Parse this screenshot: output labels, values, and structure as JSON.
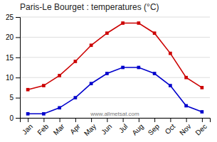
{
  "chart_data": {
    "type": "line",
    "title": "Paris-Le Bourget : temperatures (°C)",
    "categories": [
      "Jan",
      "Feb",
      "Mar",
      "Apr",
      "May",
      "Jun",
      "Jul",
      "Aug",
      "Sep",
      "Oct",
      "Nov",
      "Dec"
    ],
    "series": [
      {
        "color": "#cc0000",
        "marker": "square",
        "values": [
          7,
          8,
          10.5,
          14,
          18,
          21,
          23.5,
          23.5,
          21,
          16,
          10,
          7.5
        ]
      },
      {
        "color": "#0000cc",
        "marker": "square",
        "values": [
          1,
          1,
          2.5,
          5,
          8.5,
          11,
          12.5,
          12.5,
          11,
          8,
          3,
          1.5
        ]
      }
    ],
    "ylim": [
      0,
      25
    ],
    "yticks": [
      0,
      5,
      10,
      15,
      20,
      25
    ],
    "grid": true,
    "annotations": [
      "www.allmetsat.com"
    ]
  }
}
